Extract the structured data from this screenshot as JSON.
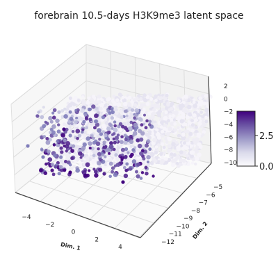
{
  "chart_data": {
    "type": "scatter",
    "projection": "3d",
    "title": "forebrain 10.5-days  H3K9me3 latent space",
    "xlabel": "Dim. 1",
    "ylabel": "Dim. 2",
    "zlabel": "",
    "x_ticks": [
      "−4",
      "−2",
      "0",
      "2",
      "4"
    ],
    "y_ticks": [
      "−12",
      "−11",
      "−10",
      "−9",
      "−8",
      "−7",
      "−6",
      "−5"
    ],
    "z_ticks": [
      "2",
      "0",
      "−2",
      "−4",
      "−6",
      "−8",
      "−10"
    ],
    "xlim": [
      -5,
      5
    ],
    "ylim": [
      -12.5,
      -4.5
    ],
    "zlim": [
      -10.5,
      3
    ],
    "grid": true,
    "colormap": "Purples",
    "colorbar": {
      "range": [
        0.0,
        4.3
      ],
      "ticks": [
        "0.0",
        "2.5"
      ],
      "placement": "right"
    },
    "colors": {
      "low": "#f6f4fa",
      "mid": "#9e9ac8",
      "high": "#3f007d"
    },
    "point_count_note": "dense cluster; points sampled representative of the cloud"
  }
}
